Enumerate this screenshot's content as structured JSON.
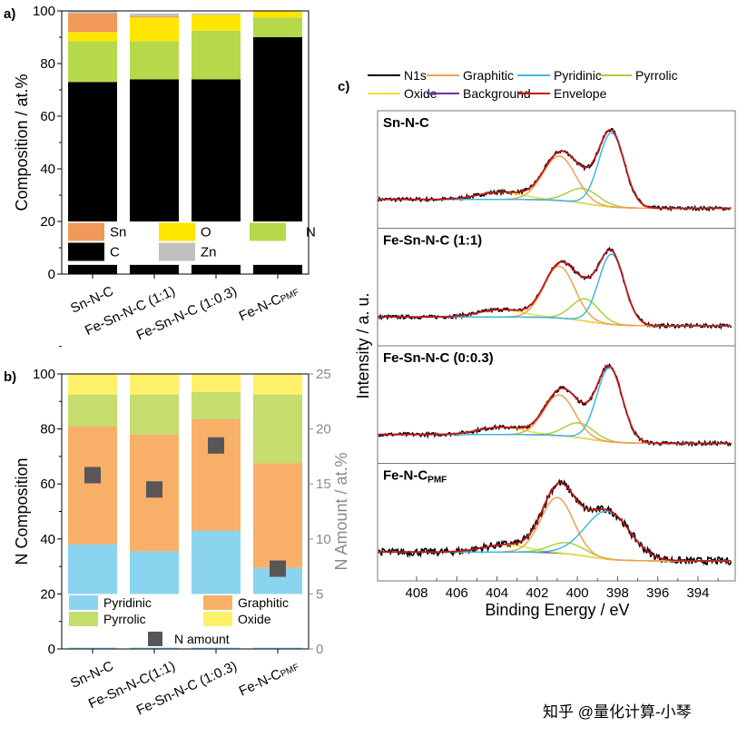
{
  "watermark": "知乎 @量化计算-小琴",
  "chart_data": [
    {
      "panel": "a)",
      "type": "bar",
      "stacked": true,
      "ylabel": "Composition / at.%",
      "ylim": [
        0,
        100
      ],
      "yticks": [
        "0",
        "20",
        "40",
        "60",
        "80",
        "100"
      ],
      "categories": [
        "Sn-N-C",
        "Fe-Sn-N-C (1:1)",
        "Fe-Sn-N-C (1:0.3)",
        "Fe-N-C"
      ],
      "category_subscripts": [
        "",
        "",
        "",
        "PMF"
      ],
      "series": [
        {
          "name": "C",
          "color": "#000000",
          "values": [
            73,
            74,
            74,
            90
          ]
        },
        {
          "name": "N",
          "color": "#b5d94a",
          "values": [
            15.5,
            14.5,
            18.5,
            7.5
          ]
        },
        {
          "name": "O",
          "color": "#ffe600",
          "values": [
            3.5,
            9,
            6,
            2.5
          ]
        },
        {
          "name": "Sn",
          "color": "#f0995a",
          "values": [
            7,
            0.5,
            0,
            0
          ]
        },
        {
          "name": "Zn",
          "color": "#c0c0c0",
          "values": [
            0.8,
            1,
            0.5,
            0
          ]
        }
      ],
      "legend": {
        "placement": "bottom",
        "order": [
          "Sn",
          "O",
          "N",
          "C",
          "Zn"
        ]
      }
    },
    {
      "panel": "b)",
      "type": "bar",
      "stacked": true,
      "ylabel": "N Composition",
      "ylim": [
        0,
        100
      ],
      "yticks": [
        "0",
        "20",
        "40",
        "60",
        "80",
        "100"
      ],
      "y2label": "N Amount / at.%",
      "y2lim": [
        0,
        25
      ],
      "y2ticks": [
        "0",
        "5",
        "10",
        "15",
        "20",
        "25"
      ],
      "categories": [
        "Sn-N-C",
        "Fe-Sn-N-C(1:1)",
        "Fe-Sn-N-C (1:0.3)",
        "Fe-N-C"
      ],
      "category_subscripts": [
        "",
        "",
        "",
        "PMF"
      ],
      "series": [
        {
          "name": "Pyridinic",
          "color": "#8ad4f0",
          "values": [
            38,
            35.5,
            43,
            29.5
          ]
        },
        {
          "name": "Graphitic",
          "color": "#f8b068",
          "values": [
            43,
            42.5,
            40.5,
            38
          ]
        },
        {
          "name": "Pyrrolic",
          "color": "#c4dd6c",
          "values": [
            11.5,
            14.5,
            10,
            25
          ]
        },
        {
          "name": "Oxide",
          "color": "#fff06a",
          "values": [
            7.5,
            7.5,
            6.5,
            7.5
          ]
        }
      ],
      "scatter": {
        "name": "N amount",
        "color": "#5a5558",
        "axis": "y2",
        "values": [
          15.8,
          14.5,
          18.5,
          7.3
        ]
      },
      "legend": {
        "placement": "bottom"
      }
    },
    {
      "panel": "c)",
      "type": "line",
      "xlabel": "Binding Energy / eV",
      "ylabel": "Intensity / a. u.",
      "xlim": [
        410,
        392.2
      ],
      "x_reversed": true,
      "xticks": [
        "408",
        "406",
        "404",
        "402",
        "400",
        "398",
        "396",
        "394"
      ],
      "legend_entries": [
        {
          "name": "N1s",
          "color": "#000000"
        },
        {
          "name": "Graphitic",
          "color": "#f0a050"
        },
        {
          "name": "Pyridinic",
          "color": "#40b8e0"
        },
        {
          "name": "Pyrrolic",
          "color": "#a8d040"
        },
        {
          "name": "Oxide",
          "color": "#f0e030"
        },
        {
          "name": "Background",
          "color": "#7030a0"
        },
        {
          "name": "Envelope",
          "color": "#c01818"
        }
      ],
      "subplots": [
        {
          "label": "Sn-N-C",
          "sub": "",
          "peaks": {
            "Pyridinic": [
              398.3,
              1.0,
              1.5
            ],
            "Graphitic": [
              400.9,
              0.6,
              1.9
            ],
            "Pyrrolic": [
              399.7,
              0.2,
              1.8
            ],
            "Oxide": [
              403.8,
              0.1,
              2.6
            ]
          }
        },
        {
          "label": "Fe-Sn-N-C (1:1)",
          "sub": "",
          "peaks": {
            "Pyridinic": [
              398.3,
              0.95,
              1.5
            ],
            "Graphitic": [
              400.9,
              0.7,
              1.8
            ],
            "Pyrrolic": [
              399.6,
              0.3,
              1.6
            ],
            "Oxide": [
              403.8,
              0.1,
              2.6
            ]
          }
        },
        {
          "label": "Fe-Sn-N-C (0:0.3)",
          "sub": "",
          "peaks": {
            "Pyridinic": [
              398.4,
              1.0,
              1.5
            ],
            "Graphitic": [
              400.9,
              0.55,
              1.8
            ],
            "Pyrrolic": [
              399.9,
              0.2,
              1.7
            ],
            "Oxide": [
              403.8,
              0.1,
              2.6
            ]
          }
        },
        {
          "label": "Fe-N-C",
          "sub": "PMF",
          "peaks": {
            "Pyridinic": [
              398.5,
              0.65,
              2.6
            ],
            "Graphitic": [
              401.0,
              0.75,
              1.9
            ],
            "Pyrrolic": [
              400.5,
              0.15,
              2.0
            ],
            "Oxide": [
              403.6,
              0.1,
              2.6
            ]
          }
        }
      ]
    }
  ]
}
